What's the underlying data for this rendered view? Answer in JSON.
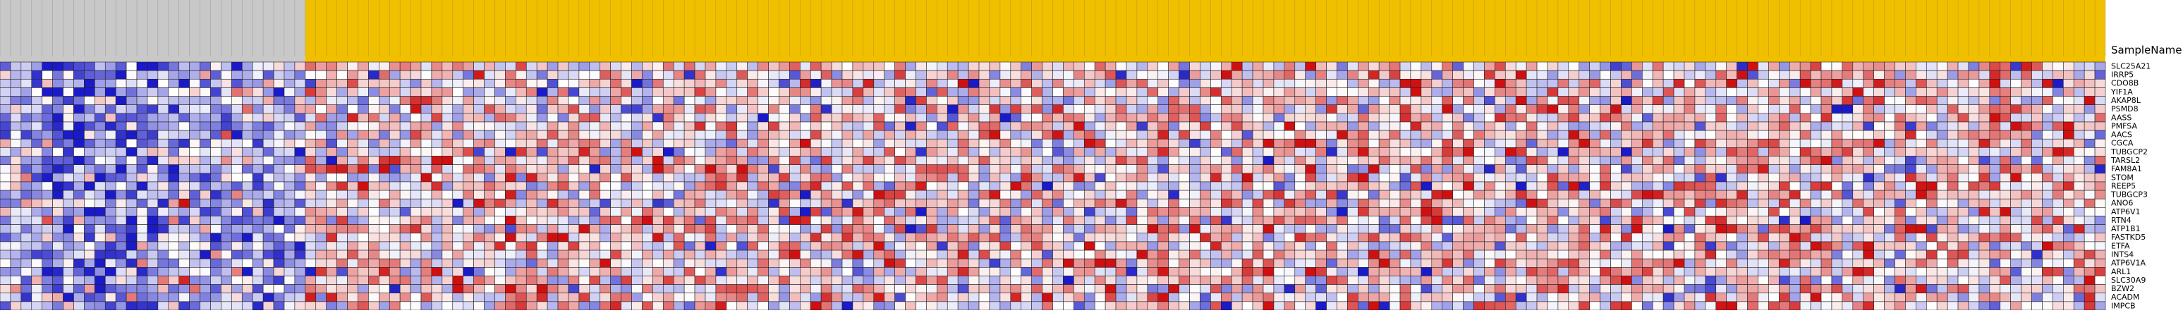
{
  "chart_data": {
    "type": "heatmap",
    "row_header": "SampleName",
    "rows": [
      "SLC25A21",
      "IRRP5",
      "CDO8B",
      "YIF1A",
      "AKAP8L",
      "PSMD8",
      "AASS",
      "PMFSA",
      "AACS",
      "CGCA",
      "TUBGCP2",
      "TARSL2",
      "FAM8A1",
      "STOM",
      "REEP5",
      "TUBGCP3",
      "ANO6",
      "ATP6V1",
      "RTN4",
      "ATP1B1",
      "FASTKD5",
      "ETFA",
      "INTS4",
      "ATP6V1A",
      "ARL1",
      "SLC30A9",
      "BZW2",
      "ACADM",
      "IMPCB"
    ],
    "columns_control_count": 29,
    "columns_case_count": 171,
    "column_label_note": "Sample names at column tops are too small to read; not transcribed.",
    "color_scale": {
      "low": "#1a1ac8",
      "mid": "#ffffff",
      "high": "#d01010"
    },
    "header_colors": {
      "control": "#c8c8c8",
      "case": "#f0c000"
    },
    "value_range": [
      -3,
      3
    ],
    "values": "Per-cell expression values are not legible at this resolution; rendered as a seeded pattern approximating the observed distribution (control group skewed low/blue, case group skewed high/red)."
  }
}
